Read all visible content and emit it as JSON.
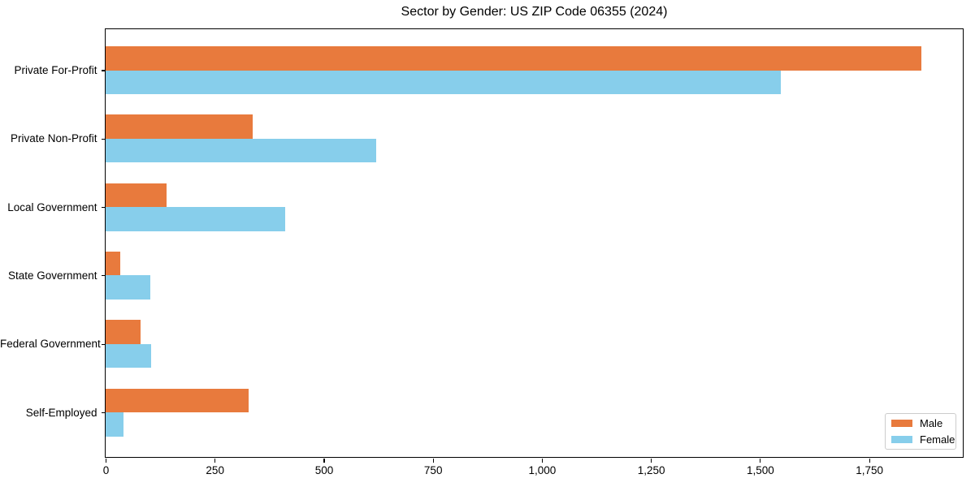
{
  "chart_data": {
    "type": "bar",
    "orientation": "horizontal",
    "title": "Sector by Gender: US ZIP Code 06355 (2024)",
    "categories": [
      "Private For-Profit",
      "Private Non-Profit",
      "Local Government",
      "State Government",
      "Federal Government",
      "Self-Employed"
    ],
    "series": [
      {
        "name": "Male",
        "color": "#e87a3d",
        "values": [
          1870,
          337,
          140,
          34,
          80,
          328
        ]
      },
      {
        "name": "Female",
        "color": "#87ceeb",
        "values": [
          1548,
          620,
          411,
          102,
          104,
          41
        ]
      }
    ],
    "xlabel": "",
    "ylabel": "",
    "xlim": [
      0,
      1963
    ],
    "xticks": [
      0,
      250,
      500,
      750,
      1000,
      1250,
      1500,
      1750
    ],
    "xtick_labels": [
      "0",
      "250",
      "500",
      "750",
      "1,000",
      "1,250",
      "1,500",
      "1,750"
    ],
    "grid": false,
    "legend": {
      "position": "lower right",
      "items": [
        "Male",
        "Female"
      ]
    }
  },
  "colors": {
    "background": "#ffffff",
    "spine": "#000000",
    "text": "#000000",
    "legend_border": "#cccccc"
  }
}
